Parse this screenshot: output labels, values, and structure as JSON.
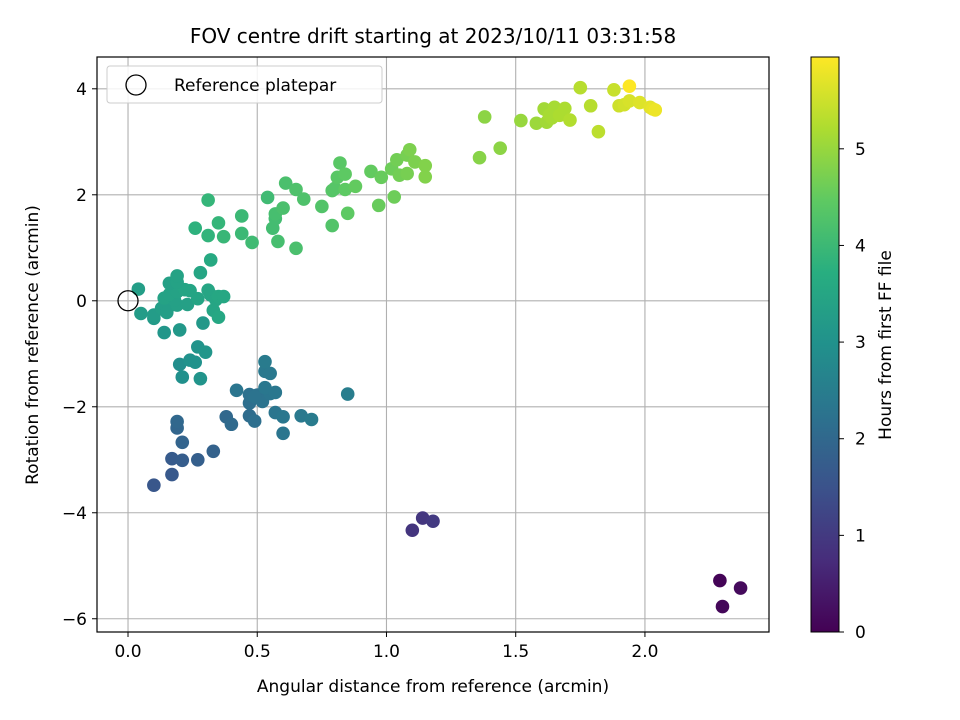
{
  "chart_data": {
    "type": "scatter",
    "title": "FOV centre drift starting at 2023/10/11 03:31:58",
    "xlabel": "Angular distance from reference (arcmin)",
    "ylabel": "Rotation from reference (arcmin)",
    "xlim": [
      -0.12,
      2.48
    ],
    "ylim": [
      -6.25,
      4.6
    ],
    "xticks": [
      0.0,
      0.5,
      1.0,
      1.5,
      2.0
    ],
    "xtick_labels": [
      "0.0",
      "0.5",
      "1.0",
      "1.5",
      "2.0"
    ],
    "yticks": [
      -6,
      -4,
      -2,
      0,
      2,
      4
    ],
    "ytick_labels": [
      "−6",
      "−4",
      "−2",
      "0",
      "2",
      "4"
    ],
    "grid": true,
    "legend": {
      "placement": "top-left",
      "entries": [
        {
          "label": "Reference platepar",
          "marker": "open-circle",
          "x": 0.0,
          "y": 0.0
        }
      ]
    },
    "colorbar": {
      "label": "Hours from first FF file",
      "colormap": "viridis",
      "range": [
        0,
        5.95
      ],
      "ticks": [
        0,
        1,
        2,
        3,
        4,
        5
      ],
      "tick_labels": [
        "0",
        "1",
        "2",
        "3",
        "4",
        "5"
      ]
    },
    "series": [
      {
        "x_y_hours": [
          [
            2.29,
            -5.28,
            0.05
          ],
          [
            2.3,
            -5.77,
            0.1
          ],
          [
            2.37,
            -5.42,
            0.15
          ],
          [
            1.1,
            -4.33,
            0.9
          ],
          [
            1.14,
            -4.1,
            0.95
          ],
          [
            1.18,
            -4.16,
            1.0
          ],
          [
            0.1,
            -3.48,
            1.6
          ],
          [
            0.17,
            -3.28,
            1.65
          ],
          [
            0.17,
            -2.98,
            1.7
          ],
          [
            0.21,
            -3.01,
            1.75
          ],
          [
            0.27,
            -3.0,
            1.8
          ],
          [
            0.33,
            -2.84,
            1.85
          ],
          [
            0.21,
            -2.67,
            1.9
          ],
          [
            0.19,
            -2.4,
            1.95
          ],
          [
            0.19,
            -2.28,
            2.0
          ],
          [
            0.38,
            -2.19,
            2.0
          ],
          [
            0.4,
            -2.33,
            2.05
          ],
          [
            0.47,
            -2.17,
            2.1
          ],
          [
            0.49,
            -2.27,
            2.15
          ],
          [
            0.47,
            -1.93,
            2.15
          ],
          [
            0.47,
            -1.77,
            2.2
          ],
          [
            0.5,
            -1.78,
            2.2
          ],
          [
            0.52,
            -1.9,
            2.25
          ],
          [
            0.49,
            -1.81,
            2.25
          ],
          [
            0.42,
            -1.69,
            2.3
          ],
          [
            0.55,
            -1.75,
            2.3
          ],
          [
            0.53,
            -1.64,
            2.35
          ],
          [
            0.57,
            -1.73,
            2.35
          ],
          [
            0.53,
            -1.33,
            2.4
          ],
          [
            0.55,
            -1.37,
            2.4
          ],
          [
            0.53,
            -1.15,
            2.45
          ],
          [
            0.57,
            -2.11,
            2.3
          ],
          [
            0.6,
            -2.19,
            2.35
          ],
          [
            0.6,
            -2.5,
            2.3
          ],
          [
            0.67,
            -2.17,
            2.4
          ],
          [
            0.71,
            -2.24,
            2.45
          ],
          [
            0.85,
            -1.76,
            2.5
          ],
          [
            0.2,
            -1.2,
            2.9
          ],
          [
            0.21,
            -1.44,
            2.95
          ],
          [
            0.24,
            -1.12,
            3.0
          ],
          [
            0.26,
            -1.16,
            3.0
          ],
          [
            0.28,
            -1.47,
            3.05
          ],
          [
            0.27,
            -0.87,
            3.05
          ],
          [
            0.3,
            -0.97,
            3.1
          ],
          [
            0.14,
            -0.6,
            3.1
          ],
          [
            0.2,
            -0.55,
            3.15
          ],
          [
            0.29,
            -0.42,
            3.15
          ],
          [
            0.1,
            -0.33,
            3.2
          ],
          [
            0.05,
            -0.24,
            3.25
          ],
          [
            0.1,
            -0.27,
            3.25
          ],
          [
            0.13,
            -0.14,
            3.3
          ],
          [
            0.15,
            -0.22,
            3.3
          ],
          [
            0.16,
            -0.1,
            3.3
          ],
          [
            0.19,
            -0.08,
            3.35
          ],
          [
            0.23,
            -0.07,
            3.35
          ],
          [
            0.18,
            0.01,
            3.35
          ],
          [
            0.14,
            0.05,
            3.4
          ],
          [
            0.16,
            0.12,
            3.4
          ],
          [
            0.19,
            0.17,
            3.4
          ],
          [
            0.22,
            0.21,
            3.45
          ],
          [
            0.24,
            0.19,
            3.45
          ],
          [
            0.27,
            0.04,
            3.45
          ],
          [
            0.31,
            0.2,
            3.5
          ],
          [
            0.32,
            0.11,
            3.5
          ],
          [
            0.34,
            0.02,
            3.5
          ],
          [
            0.35,
            0.08,
            3.55
          ],
          [
            0.37,
            0.08,
            3.55
          ],
          [
            0.33,
            -0.18,
            3.5
          ],
          [
            0.35,
            -0.31,
            3.55
          ],
          [
            0.04,
            0.22,
            3.3
          ],
          [
            0.16,
            0.33,
            3.35
          ],
          [
            0.19,
            0.35,
            3.4
          ],
          [
            0.19,
            0.47,
            3.4
          ],
          [
            0.28,
            0.53,
            3.5
          ],
          [
            0.32,
            0.77,
            3.6
          ],
          [
            0.26,
            1.37,
            3.8
          ],
          [
            0.31,
            1.23,
            3.85
          ],
          [
            0.31,
            1.9,
            3.9
          ],
          [
            0.35,
            1.47,
            3.9
          ],
          [
            0.37,
            1.21,
            3.95
          ],
          [
            0.44,
            1.27,
            4.0
          ],
          [
            0.44,
            1.6,
            4.0
          ],
          [
            0.48,
            1.1,
            4.05
          ],
          [
            0.54,
            1.95,
            4.05
          ],
          [
            0.56,
            1.37,
            4.1
          ],
          [
            0.57,
            1.55,
            4.1
          ],
          [
            0.57,
            1.64,
            4.15
          ],
          [
            0.58,
            1.12,
            4.15
          ],
          [
            0.6,
            1.75,
            4.2
          ],
          [
            0.61,
            2.22,
            4.2
          ],
          [
            0.65,
            2.1,
            4.25
          ],
          [
            0.65,
            0.99,
            4.2
          ],
          [
            0.68,
            1.92,
            4.25
          ],
          [
            0.75,
            1.78,
            4.3
          ],
          [
            0.79,
            1.42,
            4.3
          ],
          [
            0.79,
            2.08,
            4.35
          ],
          [
            0.8,
            2.12,
            4.35
          ],
          [
            0.81,
            2.33,
            4.4
          ],
          [
            0.82,
            2.6,
            4.4
          ],
          [
            0.84,
            2.1,
            4.45
          ],
          [
            0.84,
            2.39,
            4.45
          ],
          [
            0.85,
            1.65,
            4.45
          ],
          [
            0.88,
            2.16,
            4.5
          ],
          [
            0.94,
            2.44,
            4.5
          ],
          [
            0.97,
            1.8,
            4.55
          ],
          [
            0.98,
            2.33,
            4.55
          ],
          [
            1.02,
            2.49,
            4.6
          ],
          [
            1.03,
            1.96,
            4.6
          ],
          [
            1.04,
            2.66,
            4.65
          ],
          [
            1.05,
            2.37,
            4.65
          ],
          [
            1.08,
            2.4,
            4.7
          ],
          [
            1.08,
            2.75,
            4.7
          ],
          [
            1.09,
            2.85,
            4.75
          ],
          [
            1.11,
            2.62,
            4.75
          ],
          [
            1.15,
            2.55,
            4.8
          ],
          [
            1.15,
            2.34,
            4.8
          ],
          [
            1.36,
            2.7,
            4.85
          ],
          [
            1.38,
            3.47,
            4.9
          ],
          [
            1.44,
            2.88,
            4.9
          ],
          [
            1.52,
            3.4,
            5.0
          ],
          [
            1.58,
            3.35,
            5.05
          ],
          [
            1.61,
            3.62,
            5.1
          ],
          [
            1.62,
            3.37,
            5.1
          ],
          [
            1.63,
            3.5,
            5.15
          ],
          [
            1.64,
            3.45,
            5.15
          ],
          [
            1.65,
            3.65,
            5.15
          ],
          [
            1.67,
            3.5,
            5.2
          ],
          [
            1.69,
            3.63,
            5.2
          ],
          [
            1.71,
            3.41,
            5.25
          ],
          [
            1.75,
            4.02,
            5.3
          ],
          [
            1.79,
            3.68,
            5.3
          ],
          [
            1.82,
            3.19,
            5.35
          ],
          [
            1.88,
            3.98,
            5.45
          ],
          [
            1.9,
            3.68,
            5.5
          ],
          [
            1.92,
            3.7,
            5.55
          ],
          [
            1.94,
            3.77,
            5.6
          ],
          [
            1.94,
            4.05,
            5.95
          ],
          [
            1.98,
            3.74,
            5.65
          ],
          [
            2.02,
            3.65,
            5.7
          ],
          [
            2.03,
            3.62,
            5.75
          ],
          [
            2.04,
            3.6,
            5.8
          ]
        ]
      }
    ]
  }
}
